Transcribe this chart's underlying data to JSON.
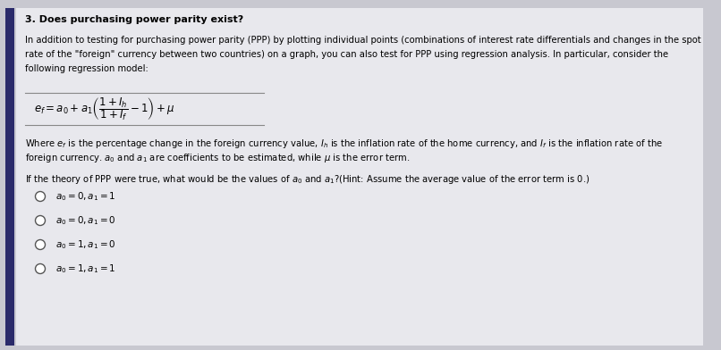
{
  "background_color": "#c8c8d0",
  "panel_color": "#e8e8ed",
  "left_bar_color": "#2a2a6a",
  "title": "3. Does purchasing power parity exist?",
  "paragraph1_line1": "In addition to testing for purchasing power parity (PPP) by plotting individual points (combinations of interest rate differentials and changes in the spot",
  "paragraph1_line2": "rate of the \"foreign\" currency between two countries) on a graph, you can also test for PPP using regression analysis. In particular, consider the",
  "paragraph1_line3": "following regression model:",
  "formula": "$e_f = a_0 + a_1\\left(\\dfrac{1+I_h}{1+I_f}-1\\right)+\\mu$",
  "paragraph2_line1": "Where $e_f$ is the percentage change in the foreign currency value, $I_h$ is the inflation rate of the home currency, and $I_f$ is the inflation rate of the",
  "paragraph2_line2": "foreign currency. $a_0$ and $a_1$ are coefficients to be estimated, while $\\mu$ is the error term.",
  "question": "If the theory of PPP were true, what would be the values of $a_0$ and $a_1$?(Hint: Assume the average value of the error term is 0.)",
  "options": [
    "$a_0 = 0, a_1 = 1$",
    "$a_0 = 0, a_1 = 0$",
    "$a_0 = 1, a_1 = 0$",
    "$a_0 = 1, a_1 = 1$"
  ],
  "title_fontsize": 8.0,
  "body_fontsize": 7.2,
  "formula_fontsize": 8.5,
  "option_fontsize": 7.5
}
